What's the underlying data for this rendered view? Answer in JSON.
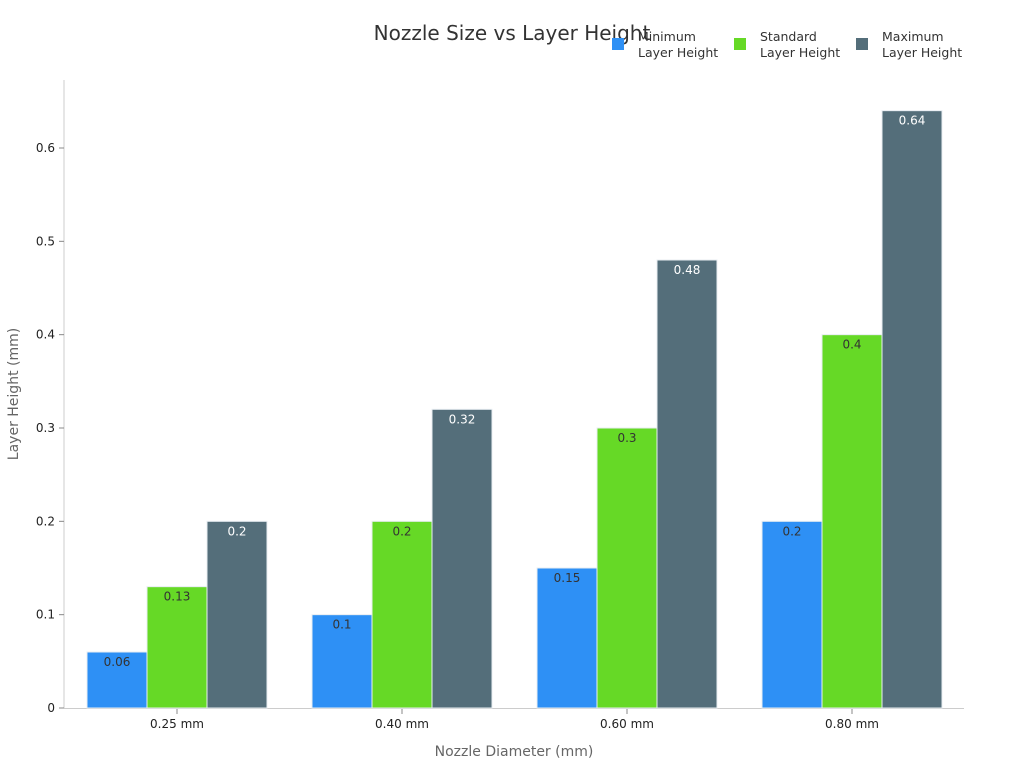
{
  "chart_data": {
    "type": "bar",
    "title": "Nozzle Size vs Layer Height",
    "xlabel": "Nozzle Diameter (mm)",
    "ylabel": "Layer Height (mm)",
    "categories": [
      "0.25 mm",
      "0.40 mm",
      "0.60 mm",
      "0.80 mm"
    ],
    "series": [
      {
        "name": "Minimum Layer Height",
        "legend_lines": [
          "Minimum",
          "Layer Height"
        ],
        "color": "#2E90F5",
        "label_color": "#333333",
        "values": [
          0.06,
          0.1,
          0.15,
          0.2
        ]
      },
      {
        "name": "Standard Layer Height",
        "legend_lines": [
          "Standard",
          "Layer Height"
        ],
        "color": "#66D926",
        "label_color": "#333333",
        "values": [
          0.13,
          0.2,
          0.3,
          0.4
        ]
      },
      {
        "name": "Maximum Layer Height",
        "legend_lines": [
          "Maximum",
          "Layer Height"
        ],
        "color": "#546E7A",
        "label_color": "#FFFFFF",
        "values": [
          0.2,
          0.32,
          0.48,
          0.64
        ]
      }
    ],
    "yticks": [
      0,
      0.1,
      0.2,
      0.3,
      0.4,
      0.5,
      0.6
    ],
    "ytick_labels": [
      "0",
      "0.1",
      "0.2",
      "0.3",
      "0.4",
      "0.5",
      "0.6"
    ],
    "ylim": [
      0,
      0.67
    ],
    "grid": false,
    "legend_position": "top-right"
  }
}
